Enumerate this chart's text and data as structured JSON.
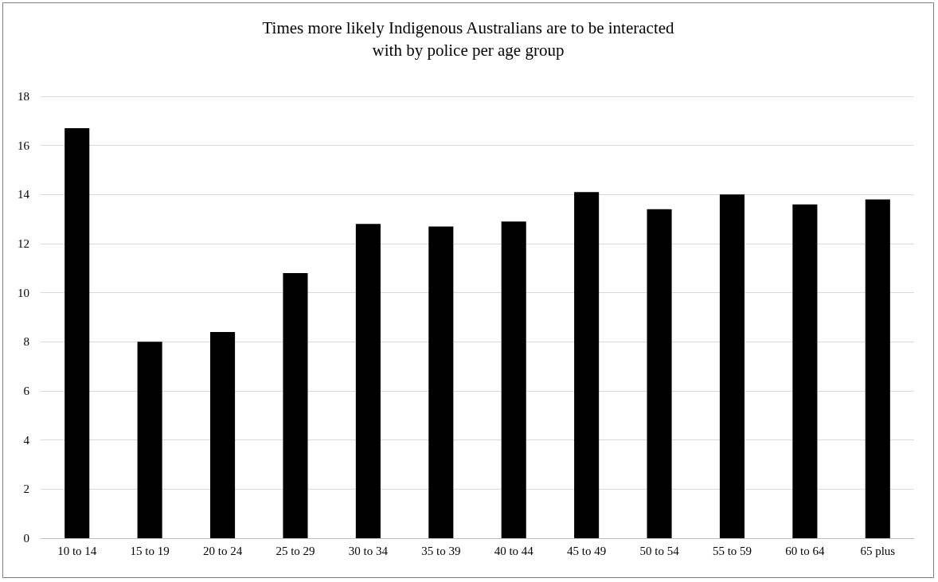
{
  "chart_data": {
    "type": "bar",
    "title": "Times more likely Indigenous Australians are to be interacted\nwith by police per age group",
    "categories": [
      "10 to 14",
      "15 to 19",
      "20 to 24",
      "25 to 29",
      "30 to 34",
      "35 to 39",
      "40 to 44",
      "45 to 49",
      "50 to 54",
      "55 to 59",
      "60 to 64",
      "65 plus"
    ],
    "values": [
      16.7,
      8.0,
      8.4,
      10.8,
      12.8,
      12.7,
      12.9,
      14.1,
      13.4,
      14.0,
      13.6,
      13.8
    ],
    "color": "#000000",
    "ylim": [
      0,
      18
    ],
    "yticks": [
      0,
      2,
      4,
      6,
      8,
      10,
      12,
      14,
      16,
      18
    ],
    "grid": "y"
  }
}
